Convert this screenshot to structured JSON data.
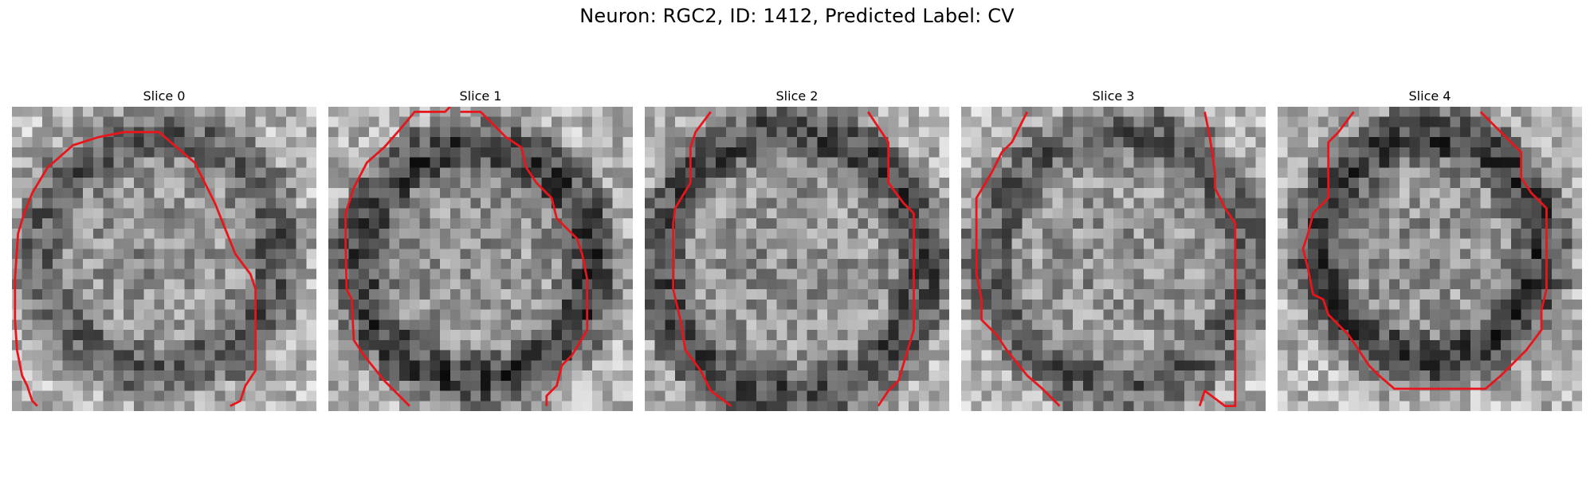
{
  "figure": {
    "suptitle": "Neuron: RGC2, ID: 1412, Predicted Label: CV"
  },
  "panels": [
    {
      "title": "Slice 0",
      "seed": 11,
      "darkring": 0.42,
      "ringCenter": [
        14.5,
        14.5
      ],
      "ringRadius": 11.5,
      "contour_color": "#e8161b"
    },
    {
      "title": "Slice 1",
      "seed": 23,
      "darkring": 0.62,
      "ringCenter": [
        14.5,
        15.5
      ],
      "ringRadius": 11.5,
      "contour_color": "#e8161b"
    },
    {
      "title": "Slice 2",
      "seed": 37,
      "darkring": 0.55,
      "ringCenter": [
        14.5,
        15.5
      ],
      "ringRadius": 13.0,
      "contour_color": "#e8161b"
    },
    {
      "title": "Slice 3",
      "seed": 41,
      "darkring": 0.4,
      "ringCenter": [
        15.5,
        15.0
      ],
      "ringRadius": 12.5,
      "contour_color": "#e8161b"
    },
    {
      "title": "Slice 4",
      "seed": 53,
      "darkring": 0.65,
      "ringCenter": [
        15.0,
        14.0
      ],
      "ringRadius": 11.0,
      "contour_color": "#e8161b"
    }
  ]
}
